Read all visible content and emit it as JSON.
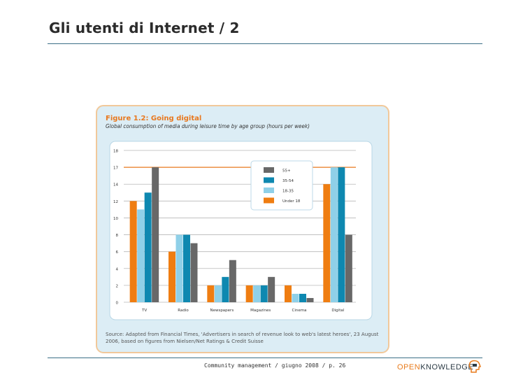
{
  "slide": {
    "title": "Gli utenti di Internet / 2",
    "footer": "Community management / giugno 2008 / p. 26",
    "brand_open": "OPEN",
    "brand_knowledge": "KNOWLEDGE"
  },
  "colors": {
    "rule": "#3c6f86",
    "figure_bg": "#dcedf5",
    "figure_border": "#f1c89a",
    "title_orange": "#e8781e",
    "under18": "#ef7d11",
    "age18_35": "#8fd0e8",
    "age35_54": "#0e88b0",
    "age55plus": "#686868"
  },
  "chart_data": {
    "type": "bar",
    "title": "Figure 1.2: Going digital",
    "subtitle": "Global consumption of media during leisure time by age group (hours per week)",
    "categories": [
      "TV",
      "Radio",
      "Newspapers",
      "Magazines",
      "Cinema",
      "Digital"
    ],
    "yticks": [
      "18",
      "17",
      "14",
      "12",
      "10",
      "8",
      "6",
      "4",
      "2",
      "0"
    ],
    "ylim": [
      0,
      18
    ],
    "grid": true,
    "legend_position": "top-right",
    "series": [
      {
        "name": "Under 18",
        "color": "#ef7d11",
        "values": [
          12,
          6,
          2,
          2,
          2,
          14
        ]
      },
      {
        "name": "18-35",
        "color": "#8fd0e8",
        "values": [
          11,
          8,
          2,
          2,
          1,
          17
        ]
      },
      {
        "name": "35-54",
        "color": "#0e88b0",
        "values": [
          13,
          8,
          3,
          2,
          1,
          17
        ]
      },
      {
        "name": "55+",
        "color": "#686868",
        "values": [
          17,
          7,
          5,
          3,
          0.5,
          8
        ]
      }
    ],
    "source": "Source: Adapted from Financial Times, 'Advertisers in search of revenue look to web's latest heroes', 23 August 2006, based on figures from Nielsen/Net Ratings & Credit Suisse"
  }
}
